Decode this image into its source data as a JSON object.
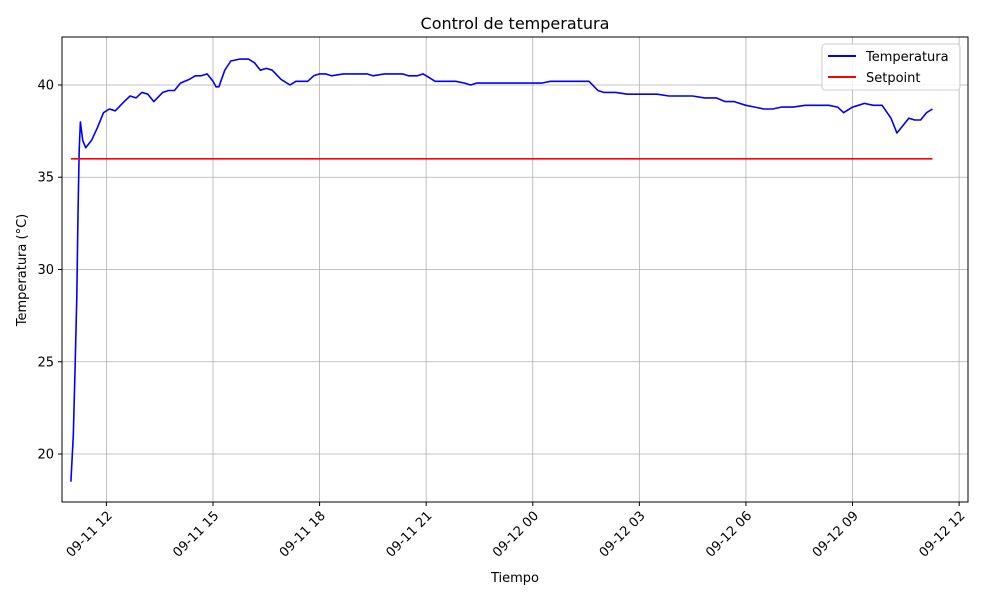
{
  "chart_data": {
    "type": "line",
    "title": "Control de temperatura",
    "xlabel": "Tiempo",
    "ylabel": "Temperatura (°C)",
    "x_axis": "datetime",
    "xlim": [
      "2024-09-11 10:45",
      "2024-09-12 12:15"
    ],
    "ylim": [
      17.4,
      42.6
    ],
    "x_ticks": [
      {
        "t": "2024-09-11 12:00",
        "label": "09-11 12"
      },
      {
        "t": "2024-09-11 15:00",
        "label": "09-11 15"
      },
      {
        "t": "2024-09-11 18:00",
        "label": "09-11 18"
      },
      {
        "t": "2024-09-11 21:00",
        "label": "09-11 21"
      },
      {
        "t": "2024-09-12 00:00",
        "label": "09-12 00"
      },
      {
        "t": "2024-09-12 03:00",
        "label": "09-12 03"
      },
      {
        "t": "2024-09-12 06:00",
        "label": "09-12 06"
      },
      {
        "t": "2024-09-12 09:00",
        "label": "09-12 09"
      },
      {
        "t": "2024-09-12 12:00",
        "label": "09-12 12"
      }
    ],
    "y_ticks": [
      20,
      25,
      30,
      35,
      40
    ],
    "grid": true,
    "legend_position": "top-right",
    "series": [
      {
        "name": "Temperatura",
        "color": "#0000ff",
        "points": [
          [
            "2024-09-11 11:00",
            18.5
          ],
          [
            "2024-09-11 11:04",
            21.0
          ],
          [
            "2024-09-11 11:07",
            24.5
          ],
          [
            "2024-09-11 11:10",
            28.5
          ],
          [
            "2024-09-11 11:12",
            33.0
          ],
          [
            "2024-09-11 11:14",
            36.5
          ],
          [
            "2024-09-11 11:16",
            38.0
          ],
          [
            "2024-09-11 11:20",
            37.0
          ],
          [
            "2024-09-11 11:25",
            36.6
          ],
          [
            "2024-09-11 11:35",
            37.0
          ],
          [
            "2024-09-11 11:45",
            37.7
          ],
          [
            "2024-09-11 11:55",
            38.5
          ],
          [
            "2024-09-11 12:05",
            38.7
          ],
          [
            "2024-09-11 12:15",
            38.6
          ],
          [
            "2024-09-11 12:30",
            39.1
          ],
          [
            "2024-09-11 12:40",
            39.4
          ],
          [
            "2024-09-11 12:50",
            39.3
          ],
          [
            "2024-09-11 13:00",
            39.6
          ],
          [
            "2024-09-11 13:10",
            39.5
          ],
          [
            "2024-09-11 13:20",
            39.1
          ],
          [
            "2024-09-11 13:35",
            39.6
          ],
          [
            "2024-09-11 13:45",
            39.7
          ],
          [
            "2024-09-11 13:55",
            39.7
          ],
          [
            "2024-09-11 14:05",
            40.1
          ],
          [
            "2024-09-11 14:20",
            40.3
          ],
          [
            "2024-09-11 14:30",
            40.5
          ],
          [
            "2024-09-11 14:40",
            40.5
          ],
          [
            "2024-09-11 14:50",
            40.6
          ],
          [
            "2024-09-11 15:00",
            40.2
          ],
          [
            "2024-09-11 15:05",
            39.9
          ],
          [
            "2024-09-11 15:10",
            39.9
          ],
          [
            "2024-09-11 15:20",
            40.8
          ],
          [
            "2024-09-11 15:30",
            41.3
          ],
          [
            "2024-09-11 15:45",
            41.4
          ],
          [
            "2024-09-11 16:00",
            41.4
          ],
          [
            "2024-09-11 16:10",
            41.2
          ],
          [
            "2024-09-11 16:20",
            40.8
          ],
          [
            "2024-09-11 16:30",
            40.9
          ],
          [
            "2024-09-11 16:40",
            40.8
          ],
          [
            "2024-09-11 16:55",
            40.3
          ],
          [
            "2024-09-11 17:10",
            40.0
          ],
          [
            "2024-09-11 17:20",
            40.2
          ],
          [
            "2024-09-11 17:30",
            40.2
          ],
          [
            "2024-09-11 17:40",
            40.2
          ],
          [
            "2024-09-11 17:50",
            40.5
          ],
          [
            "2024-09-11 18:00",
            40.6
          ],
          [
            "2024-09-11 18:10",
            40.6
          ],
          [
            "2024-09-11 18:20",
            40.5
          ],
          [
            "2024-09-11 18:40",
            40.6
          ],
          [
            "2024-09-11 19:00",
            40.6
          ],
          [
            "2024-09-11 19:20",
            40.6
          ],
          [
            "2024-09-11 19:30",
            40.5
          ],
          [
            "2024-09-11 19:50",
            40.6
          ],
          [
            "2024-09-11 20:10",
            40.6
          ],
          [
            "2024-09-11 20:20",
            40.6
          ],
          [
            "2024-09-11 20:30",
            40.5
          ],
          [
            "2024-09-11 20:45",
            40.5
          ],
          [
            "2024-09-11 20:55",
            40.6
          ],
          [
            "2024-09-11 21:05",
            40.4
          ],
          [
            "2024-09-11 21:15",
            40.2
          ],
          [
            "2024-09-11 21:30",
            40.2
          ],
          [
            "2024-09-11 21:50",
            40.2
          ],
          [
            "2024-09-11 22:05",
            40.1
          ],
          [
            "2024-09-11 22:15",
            40.0
          ],
          [
            "2024-09-11 22:25",
            40.1
          ],
          [
            "2024-09-11 22:40",
            40.1
          ],
          [
            "2024-09-11 23:00",
            40.1
          ],
          [
            "2024-09-11 23:15",
            40.1
          ],
          [
            "2024-09-11 23:30",
            40.1
          ],
          [
            "2024-09-11 23:50",
            40.1
          ],
          [
            "2024-09-12 00:00",
            40.1
          ],
          [
            "2024-09-12 00:15",
            40.1
          ],
          [
            "2024-09-12 00:30",
            40.2
          ],
          [
            "2024-09-12 00:50",
            40.2
          ],
          [
            "2024-09-12 01:05",
            40.2
          ],
          [
            "2024-09-12 01:20",
            40.2
          ],
          [
            "2024-09-12 01:35",
            40.2
          ],
          [
            "2024-09-12 01:50",
            39.7
          ],
          [
            "2024-09-12 02:00",
            39.6
          ],
          [
            "2024-09-12 02:20",
            39.6
          ],
          [
            "2024-09-12 02:40",
            39.5
          ],
          [
            "2024-09-12 03:00",
            39.5
          ],
          [
            "2024-09-12 03:15",
            39.5
          ],
          [
            "2024-09-12 03:30",
            39.5
          ],
          [
            "2024-09-12 03:50",
            39.4
          ],
          [
            "2024-09-12 04:10",
            39.4
          ],
          [
            "2024-09-12 04:30",
            39.4
          ],
          [
            "2024-09-12 04:50",
            39.3
          ],
          [
            "2024-09-12 05:10",
            39.3
          ],
          [
            "2024-09-12 05:25",
            39.1
          ],
          [
            "2024-09-12 05:40",
            39.1
          ],
          [
            "2024-09-12 06:00",
            38.9
          ],
          [
            "2024-09-12 06:15",
            38.8
          ],
          [
            "2024-09-12 06:30",
            38.7
          ],
          [
            "2024-09-12 06:45",
            38.7
          ],
          [
            "2024-09-12 07:00",
            38.8
          ],
          [
            "2024-09-12 07:20",
            38.8
          ],
          [
            "2024-09-12 07:40",
            38.9
          ],
          [
            "2024-09-12 08:00",
            38.9
          ],
          [
            "2024-09-12 08:20",
            38.9
          ],
          [
            "2024-09-12 08:35",
            38.8
          ],
          [
            "2024-09-12 08:45",
            38.5
          ],
          [
            "2024-09-12 09:00",
            38.8
          ],
          [
            "2024-09-12 09:10",
            38.9
          ],
          [
            "2024-09-12 09:20",
            39.0
          ],
          [
            "2024-09-12 09:35",
            38.9
          ],
          [
            "2024-09-12 09:50",
            38.9
          ],
          [
            "2024-09-12 10:05",
            38.2
          ],
          [
            "2024-09-12 10:15",
            37.4
          ],
          [
            "2024-09-12 10:25",
            37.8
          ],
          [
            "2024-09-12 10:35",
            38.2
          ],
          [
            "2024-09-12 10:45",
            38.1
          ],
          [
            "2024-09-12 10:55",
            38.1
          ],
          [
            "2024-09-12 11:05",
            38.5
          ],
          [
            "2024-09-12 11:15",
            38.7
          ]
        ]
      },
      {
        "name": "Setpoint",
        "color": "#ff0000",
        "points": [
          [
            "2024-09-11 11:00",
            36.0
          ],
          [
            "2024-09-12 11:15",
            36.0
          ]
        ]
      }
    ]
  }
}
